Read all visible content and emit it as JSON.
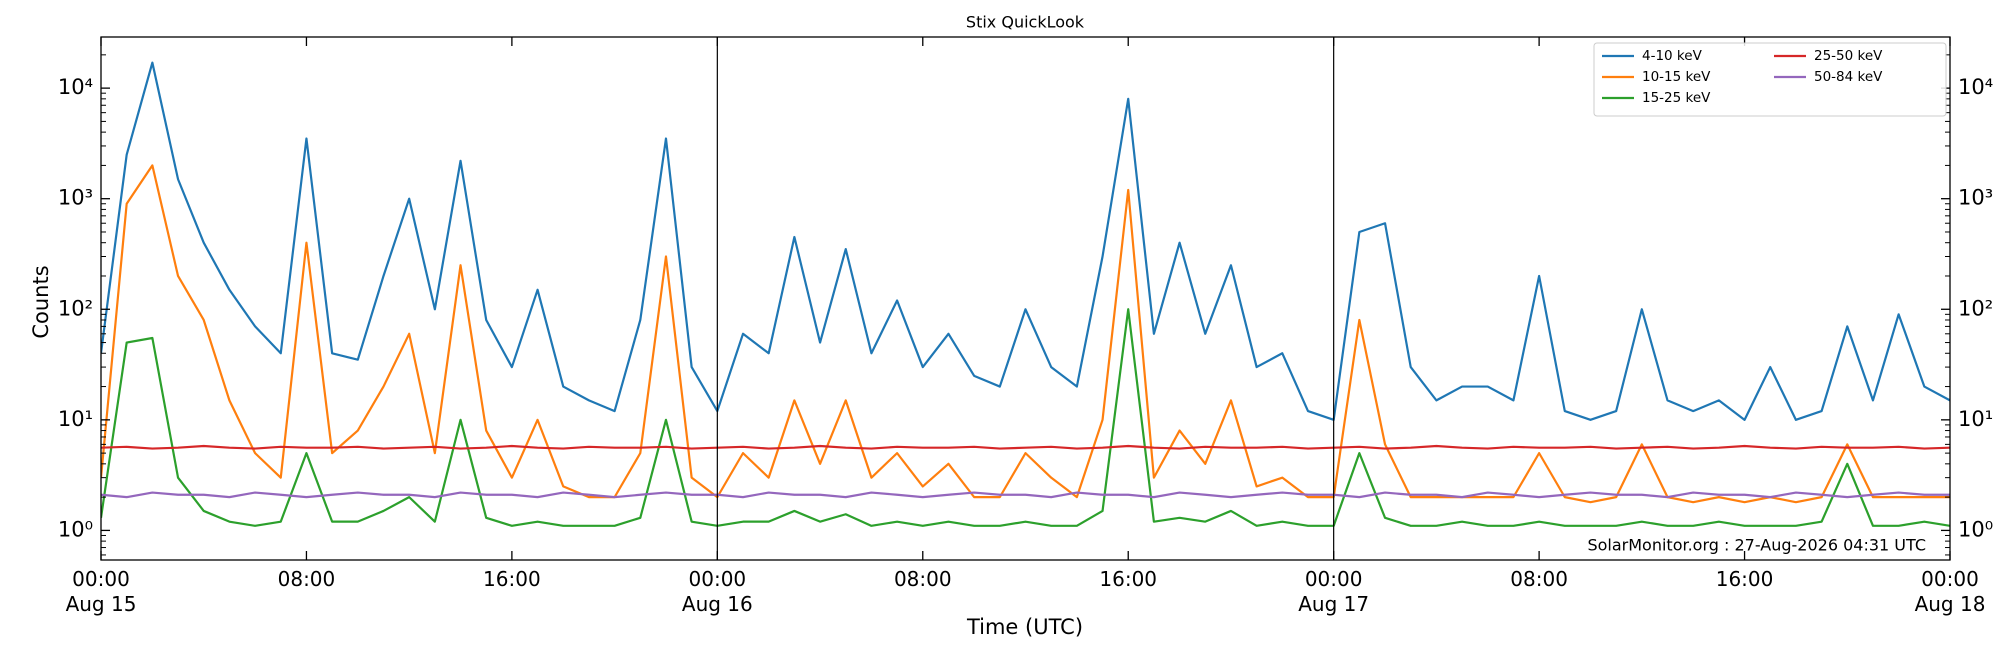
{
  "chart_data": {
    "type": "line",
    "title": "Stix QuickLook",
    "xlabel": "Time (UTC)",
    "ylabel": "Counts",
    "annotation": "SolarMonitor.org : 27-Aug-2026 04:31 UTC",
    "log_y": true,
    "legend": "upper right",
    "xlim": [
      "Aug 15 00:00",
      "Aug 18 00:00"
    ],
    "xticks": [
      {
        "value": "Aug 15 00:00",
        "label": "00:00\nAug 15"
      },
      {
        "value": "Aug 15 08:00",
        "label": "08:00"
      },
      {
        "value": "Aug 15 16:00",
        "label": "16:00"
      },
      {
        "value": "Aug 16 00:00",
        "label": "00:00\nAug 16"
      },
      {
        "value": "Aug 16 08:00",
        "label": "08:00"
      },
      {
        "value": "Aug 16 16:00",
        "label": "16:00"
      },
      {
        "value": "Aug 17 00:00",
        "label": "00:00\nAug 17"
      },
      {
        "value": "Aug 17 08:00",
        "label": "08:00"
      },
      {
        "value": "Aug 17 16:00",
        "label": "16:00"
      },
      {
        "value": "Aug 18 00:00",
        "label": "00:00\nAug 18"
      }
    ],
    "vlines": [
      "Aug 16 00:00",
      "Aug 17 00:00"
    ],
    "ylim": [
      0.54,
      29000
    ],
    "yticks": [
      {
        "value": 1,
        "label": "10⁰"
      },
      {
        "value": 10,
        "label": "10¹"
      },
      {
        "value": 100,
        "label": "10²"
      },
      {
        "value": 1000,
        "label": "10³"
      },
      {
        "value": 10000,
        "label": "10⁴"
      }
    ],
    "x": [
      "Aug 15 00:00",
      "Aug 15 01:00",
      "Aug 15 02:00",
      "Aug 15 03:00",
      "Aug 15 04:00",
      "Aug 15 05:00",
      "Aug 15 06:00",
      "Aug 15 07:00",
      "Aug 15 08:00",
      "Aug 15 09:00",
      "Aug 15 10:00",
      "Aug 15 11:00",
      "Aug 15 12:00",
      "Aug 15 13:00",
      "Aug 15 14:00",
      "Aug 15 15:00",
      "Aug 15 16:00",
      "Aug 15 17:00",
      "Aug 15 18:00",
      "Aug 15 19:00",
      "Aug 15 20:00",
      "Aug 15 21:00",
      "Aug 15 22:00",
      "Aug 15 23:00",
      "Aug 16 00:00",
      "Aug 16 01:00",
      "Aug 16 02:00",
      "Aug 16 03:00",
      "Aug 16 04:00",
      "Aug 16 05:00",
      "Aug 16 06:00",
      "Aug 16 07:00",
      "Aug 16 08:00",
      "Aug 16 09:00",
      "Aug 16 10:00",
      "Aug 16 11:00",
      "Aug 16 12:00",
      "Aug 16 13:00",
      "Aug 16 14:00",
      "Aug 16 15:00",
      "Aug 16 16:00",
      "Aug 16 17:00",
      "Aug 16 18:00",
      "Aug 16 19:00",
      "Aug 16 20:00",
      "Aug 16 21:00",
      "Aug 16 22:00",
      "Aug 16 23:00",
      "Aug 17 00:00",
      "Aug 17 01:00",
      "Aug 17 02:00",
      "Aug 17 03:00",
      "Aug 17 04:00",
      "Aug 17 05:00",
      "Aug 17 06:00",
      "Aug 17 07:00",
      "Aug 17 08:00",
      "Aug 17 09:00",
      "Aug 17 10:00",
      "Aug 17 11:00",
      "Aug 17 12:00",
      "Aug 17 13:00",
      "Aug 17 14:00",
      "Aug 17 15:00",
      "Aug 17 16:00",
      "Aug 17 17:00",
      "Aug 17 18:00",
      "Aug 17 19:00",
      "Aug 17 20:00",
      "Aug 17 21:00",
      "Aug 17 22:00",
      "Aug 17 23:00",
      "Aug 18 00:00"
    ],
    "series": [
      {
        "name": "4-10 keV",
        "color": "#1f77b4",
        "values": [
          40,
          2500,
          17000,
          1500,
          400,
          150,
          70,
          40,
          3500,
          40,
          35,
          200,
          1000,
          100,
          2200,
          80,
          30,
          150,
          20,
          15,
          12,
          80,
          3500,
          30,
          12,
          60,
          40,
          450,
          50,
          350,
          40,
          120,
          30,
          60,
          25,
          20,
          100,
          30,
          20,
          300,
          8000,
          60,
          400,
          60,
          250,
          30,
          40,
          12,
          10,
          500,
          600,
          30,
          15,
          20,
          20,
          15,
          200,
          12,
          10,
          12,
          100,
          15,
          12,
          15,
          10,
          30,
          10,
          12,
          70,
          15,
          90,
          20,
          15
        ]
      },
      {
        "name": "10-15 keV",
        "color": "#ff7f0e",
        "values": [
          3,
          900,
          2000,
          200,
          80,
          15,
          5,
          3,
          400,
          5,
          8,
          20,
          60,
          5,
          250,
          8,
          3,
          10,
          2.5,
          2,
          2,
          5,
          300,
          3,
          2,
          5,
          3,
          15,
          4,
          15,
          3,
          5,
          2.5,
          4,
          2,
          2,
          5,
          3,
          2,
          10,
          1200,
          3,
          8,
          4,
          15,
          2.5,
          3,
          2,
          2,
          80,
          6,
          2,
          2,
          2,
          2,
          2,
          5,
          2,
          1.8,
          2,
          6,
          2,
          1.8,
          2,
          1.8,
          2,
          1.8,
          2,
          6,
          2,
          2,
          2,
          2
        ]
      },
      {
        "name": "15-25 keV",
        "color": "#2ca02c",
        "values": [
          1.3,
          50,
          55,
          3,
          1.5,
          1.2,
          1.1,
          1.2,
          5,
          1.2,
          1.2,
          1.5,
          2,
          1.2,
          10,
          1.3,
          1.1,
          1.2,
          1.1,
          1.1,
          1.1,
          1.3,
          10,
          1.2,
          1.1,
          1.2,
          1.2,
          1.5,
          1.2,
          1.4,
          1.1,
          1.2,
          1.1,
          1.2,
          1.1,
          1.1,
          1.2,
          1.1,
          1.1,
          1.5,
          100,
          1.2,
          1.3,
          1.2,
          1.5,
          1.1,
          1.2,
          1.1,
          1.1,
          5,
          1.3,
          1.1,
          1.1,
          1.2,
          1.1,
          1.1,
          1.2,
          1.1,
          1.1,
          1.1,
          1.2,
          1.1,
          1.1,
          1.2,
          1.1,
          1.1,
          1.1,
          1.2,
          4,
          1.1,
          1.1,
          1.2,
          1.1
        ]
      },
      {
        "name": "25-50 keV",
        "color": "#d62728",
        "values": [
          5.6,
          5.7,
          5.5,
          5.6,
          5.8,
          5.6,
          5.5,
          5.7,
          5.6,
          5.6,
          5.7,
          5.5,
          5.6,
          5.7,
          5.5,
          5.6,
          5.8,
          5.6,
          5.5,
          5.7,
          5.6,
          5.6,
          5.7,
          5.5,
          5.6,
          5.7,
          5.5,
          5.6,
          5.8,
          5.6,
          5.5,
          5.7,
          5.6,
          5.6,
          5.7,
          5.5,
          5.6,
          5.7,
          5.5,
          5.6,
          5.8,
          5.6,
          5.5,
          5.7,
          5.6,
          5.6,
          5.7,
          5.5,
          5.6,
          5.7,
          5.5,
          5.6,
          5.8,
          5.6,
          5.5,
          5.7,
          5.6,
          5.6,
          5.7,
          5.5,
          5.6,
          5.7,
          5.5,
          5.6,
          5.8,
          5.6,
          5.5,
          5.7,
          5.6,
          5.6,
          5.7,
          5.5,
          5.6
        ]
      },
      {
        "name": "50-84 keV",
        "color": "#9467bd",
        "values": [
          2.1,
          2.0,
          2.2,
          2.1,
          2.1,
          2.0,
          2.2,
          2.1,
          2.0,
          2.1,
          2.2,
          2.1,
          2.1,
          2.0,
          2.2,
          2.1,
          2.1,
          2.0,
          2.2,
          2.1,
          2.0,
          2.1,
          2.2,
          2.1,
          2.1,
          2.0,
          2.2,
          2.1,
          2.1,
          2.0,
          2.2,
          2.1,
          2.0,
          2.1,
          2.2,
          2.1,
          2.1,
          2.0,
          2.2,
          2.1,
          2.1,
          2.0,
          2.2,
          2.1,
          2.0,
          2.1,
          2.2,
          2.1,
          2.1,
          2.0,
          2.2,
          2.1,
          2.1,
          2.0,
          2.2,
          2.1,
          2.0,
          2.1,
          2.2,
          2.1,
          2.1,
          2.0,
          2.2,
          2.1,
          2.1,
          2.0,
          2.2,
          2.1,
          2.0,
          2.1,
          2.2,
          2.1,
          2.1
        ]
      }
    ]
  }
}
